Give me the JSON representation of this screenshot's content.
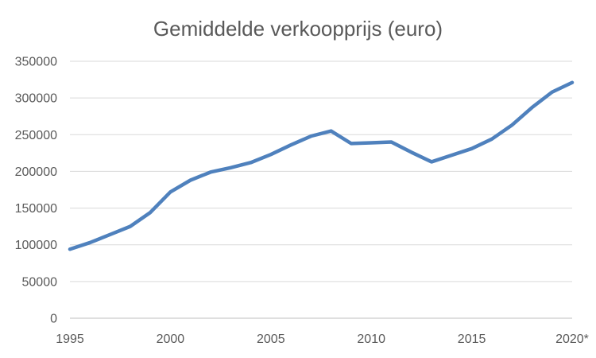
{
  "chart_data": {
    "type": "line",
    "title": "Gemiddelde verkoopprijs (euro)",
    "xlabel": "",
    "ylabel": "",
    "x": [
      1995,
      1996,
      1997,
      1998,
      1999,
      2000,
      2001,
      2002,
      2003,
      2004,
      2005,
      2006,
      2007,
      2008,
      2009,
      2010,
      2011,
      2012,
      2013,
      2014,
      2015,
      2016,
      2017,
      2018,
      2019,
      2020
    ],
    "x_tick_labels": [
      {
        "x": 1995,
        "label": "1995"
      },
      {
        "x": 2000,
        "label": "2000"
      },
      {
        "x": 2005,
        "label": "2005"
      },
      {
        "x": 2010,
        "label": "2010"
      },
      {
        "x": 2015,
        "label": "2015"
      },
      {
        "x": 2020,
        "label": "2020*"
      }
    ],
    "y_ticks": [
      0,
      50000,
      100000,
      150000,
      200000,
      250000,
      300000,
      350000
    ],
    "ylim": [
      0,
      350000
    ],
    "grid": true,
    "legend": "none",
    "series": [
      {
        "color": "#4f81bd",
        "values": [
          94000,
          103000,
          114000,
          125000,
          144000,
          172000,
          188000,
          199000,
          205000,
          212000,
          223000,
          236000,
          248000,
          255000,
          238000,
          239000,
          240000,
          226000,
          213000,
          222000,
          231000,
          244000,
          263000,
          287000,
          308000,
          321000
        ]
      }
    ]
  }
}
